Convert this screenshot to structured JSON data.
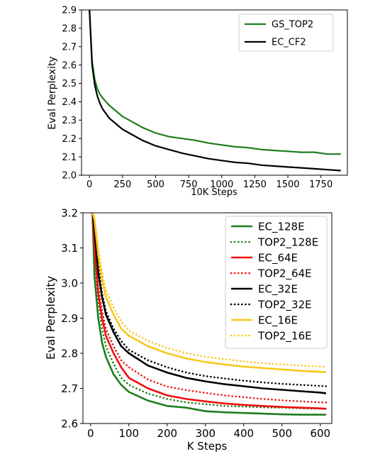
{
  "chart_data": [
    {
      "type": "line",
      "xlabel": "10K Steps",
      "ylabel": "Eval Perplexity",
      "xlim": [
        -60,
        1950
      ],
      "ylim": [
        2.0,
        2.9
      ],
      "xticks": [
        0,
        250,
        500,
        750,
        1000,
        1250,
        1500,
        1750
      ],
      "yticks": [
        2.0,
        2.1,
        2.2,
        2.3,
        2.4,
        2.5,
        2.6,
        2.7,
        2.8,
        2.9
      ],
      "grid": false,
      "legend": "top-right",
      "series": [
        {
          "name": "GS_TOP2",
          "color": "#1e7d1e",
          "dash": "solid",
          "x": [
            0,
            20,
            40,
            60,
            80,
            100,
            150,
            200,
            250,
            300,
            400,
            500,
            600,
            700,
            800,
            900,
            1000,
            1100,
            1200,
            1300,
            1400,
            1500,
            1600,
            1700,
            1800,
            1900
          ],
          "y": [
            2.9,
            2.62,
            2.52,
            2.47,
            2.44,
            2.42,
            2.38,
            2.35,
            2.32,
            2.3,
            2.26,
            2.23,
            2.21,
            2.2,
            2.19,
            2.175,
            2.165,
            2.155,
            2.15,
            2.14,
            2.135,
            2.13,
            2.125,
            2.125,
            2.115,
            2.115
          ]
        },
        {
          "name": "EC_CF2",
          "color": "#000000",
          "dash": "solid",
          "x": [
            0,
            20,
            40,
            60,
            80,
            100,
            150,
            200,
            250,
            300,
            400,
            500,
            600,
            700,
            800,
            900,
            1000,
            1100,
            1200,
            1300,
            1400,
            1500,
            1600,
            1700,
            1800,
            1900
          ],
          "y": [
            2.9,
            2.6,
            2.49,
            2.43,
            2.39,
            2.36,
            2.31,
            2.28,
            2.25,
            2.23,
            2.19,
            2.16,
            2.14,
            2.12,
            2.105,
            2.09,
            2.08,
            2.07,
            2.065,
            2.055,
            2.05,
            2.045,
            2.04,
            2.035,
            2.03,
            2.025
          ]
        }
      ]
    },
    {
      "type": "line",
      "xlabel": "K Steps",
      "ylabel": "Eval Perplexity",
      "xlim": [
        -20,
        630
      ],
      "ylim": [
        2.6,
        3.2
      ],
      "xticks": [
        0,
        100,
        200,
        300,
        400,
        500,
        600
      ],
      "yticks": [
        2.6,
        2.7,
        2.8,
        2.9,
        3.0,
        3.1,
        3.2
      ],
      "grid": false,
      "legend": "top-right",
      "series": [
        {
          "name": "EC_128E",
          "color": "#1e7d1e",
          "dash": "solid",
          "x": [
            5,
            10,
            20,
            30,
            40,
            60,
            80,
            100,
            150,
            200,
            250,
            300,
            350,
            400,
            450,
            500,
            550,
            600,
            615
          ],
          "y": [
            3.2,
            3.02,
            2.9,
            2.83,
            2.79,
            2.74,
            2.71,
            2.69,
            2.665,
            2.65,
            2.645,
            2.635,
            2.632,
            2.63,
            2.628,
            2.626,
            2.625,
            2.625,
            2.625
          ]
        },
        {
          "name": "TOP2_128E",
          "color": "#1e7d1e",
          "dash": "dotted",
          "x": [
            5,
            10,
            20,
            30,
            40,
            60,
            80,
            100,
            150,
            200,
            250,
            300,
            350,
            400,
            450,
            500,
            550,
            600,
            615
          ],
          "y": [
            3.2,
            3.07,
            2.95,
            2.87,
            2.82,
            2.77,
            2.73,
            2.71,
            2.685,
            2.67,
            2.66,
            2.655,
            2.65,
            2.648,
            2.646,
            2.645,
            2.643,
            2.642,
            2.642
          ]
        },
        {
          "name": "EC_64E",
          "color": "#ee1111",
          "dash": "solid",
          "x": [
            5,
            10,
            20,
            30,
            40,
            60,
            80,
            100,
            150,
            200,
            250,
            300,
            350,
            400,
            450,
            500,
            550,
            600,
            615
          ],
          "y": [
            3.2,
            3.1,
            2.97,
            2.9,
            2.85,
            2.8,
            2.76,
            2.73,
            2.7,
            2.68,
            2.67,
            2.663,
            2.657,
            2.653,
            2.65,
            2.647,
            2.645,
            2.643,
            2.642
          ]
        },
        {
          "name": "TOP2_64E",
          "color": "#ee1111",
          "dash": "dotted",
          "x": [
            5,
            10,
            20,
            30,
            40,
            60,
            80,
            100,
            150,
            200,
            250,
            300,
            350,
            400,
            450,
            500,
            550,
            600,
            615
          ],
          "y": [
            3.2,
            3.12,
            2.99,
            2.92,
            2.87,
            2.82,
            2.78,
            2.76,
            2.725,
            2.705,
            2.695,
            2.687,
            2.68,
            2.675,
            2.67,
            2.666,
            2.663,
            2.66,
            2.66
          ]
        },
        {
          "name": "EC_32E",
          "color": "#000000",
          "dash": "solid",
          "x": [
            5,
            10,
            20,
            30,
            40,
            60,
            80,
            100,
            150,
            200,
            250,
            300,
            350,
            400,
            450,
            500,
            550,
            600,
            615
          ],
          "y": [
            3.2,
            3.15,
            3.03,
            2.96,
            2.91,
            2.86,
            2.82,
            2.8,
            2.765,
            2.745,
            2.73,
            2.72,
            2.712,
            2.706,
            2.7,
            2.696,
            2.692,
            2.688,
            2.686
          ]
        },
        {
          "name": "TOP2_32E",
          "color": "#000000",
          "dash": "dotted",
          "x": [
            5,
            10,
            20,
            30,
            40,
            60,
            80,
            100,
            150,
            200,
            250,
            300,
            350,
            400,
            450,
            500,
            550,
            600,
            615
          ],
          "y": [
            3.2,
            3.16,
            3.05,
            2.97,
            2.92,
            2.87,
            2.835,
            2.81,
            2.78,
            2.76,
            2.745,
            2.735,
            2.728,
            2.722,
            2.717,
            2.713,
            2.71,
            2.707,
            2.706
          ]
        },
        {
          "name": "EC_16E",
          "color": "#f6c81e",
          "dash": "solid",
          "x": [
            5,
            10,
            20,
            30,
            40,
            60,
            80,
            100,
            150,
            200,
            250,
            300,
            350,
            400,
            450,
            500,
            550,
            600,
            615
          ],
          "y": [
            3.2,
            3.18,
            3.08,
            3.01,
            2.96,
            2.91,
            2.87,
            2.85,
            2.82,
            2.8,
            2.785,
            2.775,
            2.768,
            2.762,
            2.758,
            2.754,
            2.75,
            2.747,
            2.746
          ]
        },
        {
          "name": "TOP2_16E",
          "color": "#f6c81e",
          "dash": "dotted",
          "x": [
            5,
            10,
            20,
            30,
            40,
            60,
            80,
            100,
            150,
            200,
            250,
            300,
            350,
            400,
            450,
            500,
            550,
            600,
            615
          ],
          "y": [
            3.2,
            3.19,
            3.1,
            3.03,
            2.98,
            2.93,
            2.89,
            2.865,
            2.835,
            2.815,
            2.8,
            2.79,
            2.783,
            2.777,
            2.772,
            2.768,
            2.765,
            2.762,
            2.761
          ]
        }
      ]
    }
  ]
}
